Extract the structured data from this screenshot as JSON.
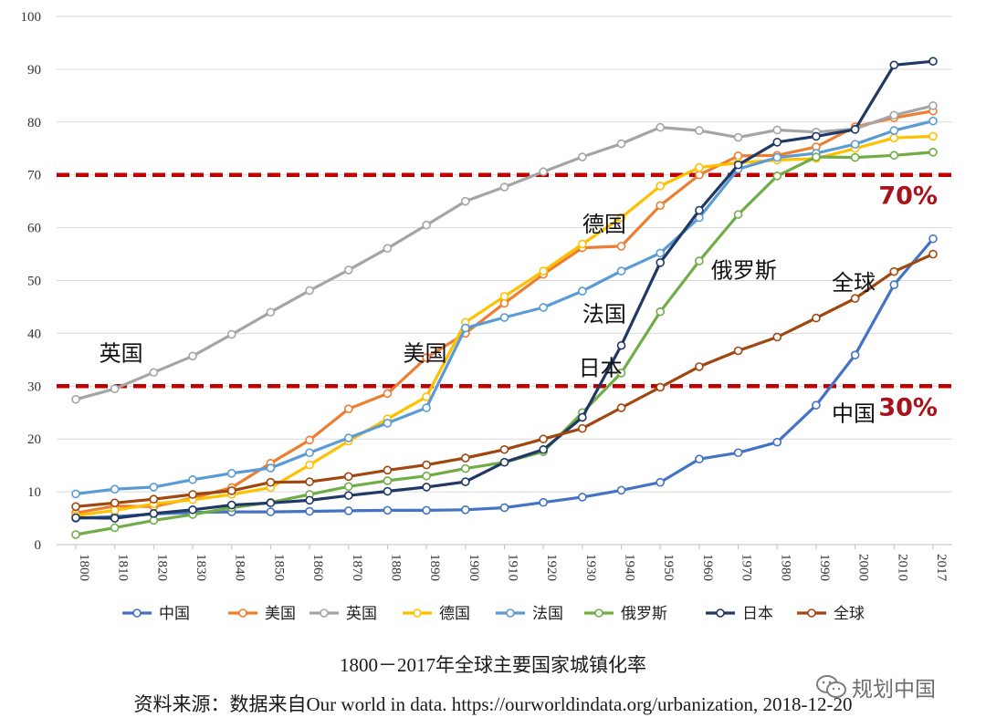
{
  "chart_data": {
    "type": "line",
    "title": "1800－2017年全球主要国家城镇化率",
    "source": "资料来源：数据来自Our world in data. https://ourworldindata.org/urbanization, 2018-12-20",
    "x": [
      1800,
      1810,
      1820,
      1830,
      1840,
      1850,
      1860,
      1870,
      1880,
      1890,
      1900,
      1910,
      1920,
      1930,
      1940,
      1950,
      1960,
      1970,
      1980,
      1990,
      2000,
      2010,
      2017
    ],
    "ylim": [
      0,
      100
    ],
    "yticks": [
      0,
      10,
      20,
      30,
      40,
      50,
      60,
      70,
      80,
      90,
      100
    ],
    "grid": true,
    "legend_position": "bottom",
    "series": [
      {
        "name": "中国",
        "color": "#4472c4",
        "values": [
          5.0,
          5.3,
          5.8,
          6.1,
          6.2,
          6.2,
          6.3,
          6.4,
          6.5,
          6.5,
          6.6,
          7.0,
          8.0,
          9.0,
          10.3,
          11.8,
          16.2,
          17.4,
          19.4,
          26.4,
          35.9,
          49.2,
          57.9
        ]
      },
      {
        "name": "美国",
        "color": "#ed7d31",
        "values": [
          6.0,
          7.3,
          7.2,
          8.8,
          10.8,
          15.4,
          19.8,
          25.7,
          28.6,
          35.4,
          40.0,
          45.7,
          51.2,
          56.2,
          56.5,
          64.2,
          70.0,
          73.6,
          73.7,
          75.3,
          79.1,
          80.8,
          82.1
        ]
      },
      {
        "name": "英国",
        "color": "#a5a5a5",
        "values": [
          27.5,
          29.5,
          32.6,
          35.7,
          39.8,
          44.0,
          48.1,
          52.0,
          56.1,
          60.5,
          65.0,
          67.7,
          70.6,
          73.4,
          75.9,
          79.0,
          78.4,
          77.1,
          78.5,
          78.1,
          78.7,
          81.3,
          83.1
        ]
      },
      {
        "name": "德国",
        "color": "#ffc000",
        "values": [
          5.5,
          6.5,
          7.7,
          8.5,
          9.5,
          10.8,
          15.1,
          19.6,
          23.8,
          28.0,
          42.1,
          47.0,
          51.8,
          56.9,
          61.9,
          67.9,
          71.4,
          72.3,
          72.8,
          73.1,
          75.0,
          77.0,
          77.3
        ]
      },
      {
        "name": "法国",
        "color": "#5b9bd5",
        "values": [
          9.6,
          10.5,
          10.9,
          12.3,
          13.5,
          14.5,
          17.4,
          20.2,
          23.0,
          25.9,
          41.0,
          43.0,
          44.9,
          48.0,
          51.8,
          55.2,
          61.9,
          71.1,
          73.3,
          74.1,
          75.8,
          78.4,
          80.2
        ]
      },
      {
        "name": "俄罗斯",
        "color": "#70ad47",
        "values": [
          1.9,
          3.2,
          4.6,
          5.7,
          7.0,
          8.0,
          9.5,
          11.0,
          12.1,
          13.0,
          14.4,
          15.6,
          17.6,
          25.0,
          32.5,
          44.1,
          53.7,
          62.5,
          69.8,
          73.4,
          73.3,
          73.7,
          74.3
        ]
      },
      {
        "name": "日本",
        "color": "#203864",
        "values": [
          5.1,
          5.0,
          5.9,
          6.6,
          7.5,
          7.9,
          8.4,
          9.3,
          10.1,
          10.9,
          11.9,
          15.6,
          18.0,
          24.1,
          37.7,
          53.4,
          63.3,
          71.9,
          76.2,
          77.3,
          78.6,
          90.8,
          91.5
        ]
      },
      {
        "name": "全球",
        "color": "#a0460f",
        "values": [
          7.2,
          7.9,
          8.6,
          9.5,
          10.2,
          11.8,
          11.9,
          12.9,
          14.1,
          15.1,
          16.4,
          18.0,
          20.0,
          22.0,
          25.9,
          29.8,
          33.7,
          36.7,
          39.3,
          42.9,
          46.6,
          51.7,
          55.0
        ]
      }
    ],
    "reference_lines": [
      {
        "value": 70,
        "label": "70%",
        "color": "#c00000"
      },
      {
        "value": 30,
        "label": "30%",
        "color": "#c00000"
      }
    ],
    "annotations": [
      {
        "text": "英国",
        "x": 1806,
        "y": 34.8
      },
      {
        "text": "美国",
        "x": 1884,
        "y": 34.8
      },
      {
        "text": "德国",
        "x": 1930,
        "y": 59.2
      },
      {
        "text": "法国",
        "x": 1930,
        "y": 42.2
      },
      {
        "text": "日本",
        "x": 1929,
        "y": 32.0
      },
      {
        "text": "俄罗斯",
        "x": 1963,
        "y": 50.5
      },
      {
        "text": "全球",
        "x": 1994,
        "y": 48.2
      },
      {
        "text": "中国",
        "x": 1994,
        "y": 23.4
      }
    ]
  },
  "watermark": "规划中国"
}
